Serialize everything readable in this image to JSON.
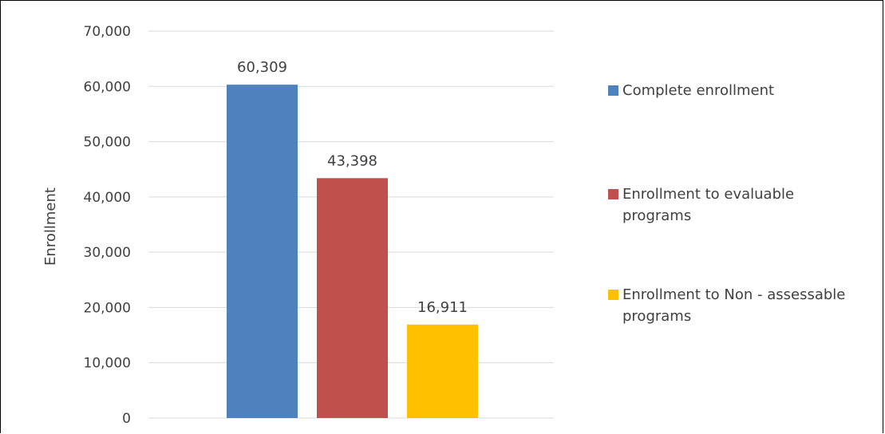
{
  "chart_data": {
    "type": "bar",
    "title": "",
    "xlabel": "",
    "ylabel": "Enrollment",
    "ylim": [
      0,
      70000
    ],
    "yticks": [
      0,
      10000,
      20000,
      30000,
      40000,
      50000,
      60000,
      70000
    ],
    "ytick_labels": [
      "0",
      "10,000",
      "20,000",
      "30,000",
      "40,000",
      "50,000",
      "60,000",
      "70,000"
    ],
    "grid": true,
    "legend_position": "right",
    "series": [
      {
        "name": "Complete enrollment",
        "value": 60309,
        "label": "60,309",
        "color": "#4F81BD",
        "legend_lines": [
          "Complete enrollment"
        ]
      },
      {
        "name": "Enrollment to evaluable programs",
        "value": 43398,
        "label": "43,398",
        "color": "#C0504D",
        "legend_lines": [
          "Enrollment to evaluable",
          "programs"
        ]
      },
      {
        "name": "Enrollment to Non - assessable programs",
        "value": 16911,
        "label": "16,911",
        "color": "#FFC000",
        "legend_lines": [
          "Enrollment to Non - assessable",
          "programs"
        ]
      }
    ]
  }
}
